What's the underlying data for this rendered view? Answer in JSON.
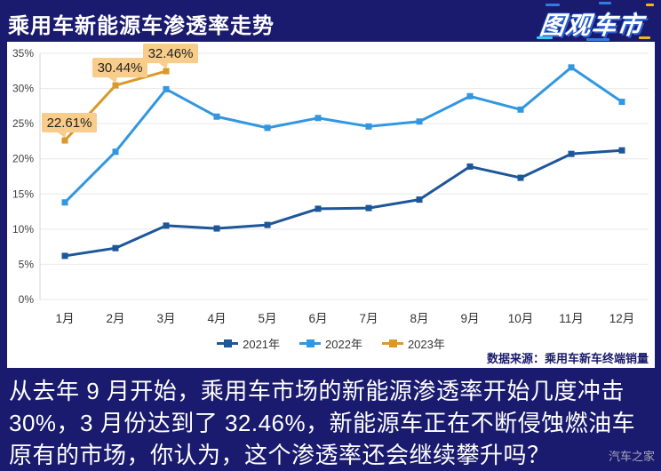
{
  "header": {
    "title": "乘用车新能源车渗透率走势",
    "logo": "图观车市"
  },
  "chart_data": {
    "type": "line",
    "title": "乘用车新能源车渗透率走势",
    "categories": [
      "1月",
      "2月",
      "3月",
      "4月",
      "5月",
      "6月",
      "7月",
      "8月",
      "9月",
      "10月",
      "11月",
      "12月"
    ],
    "ylim": [
      0,
      35
    ],
    "yticks": [
      0,
      5,
      10,
      15,
      20,
      25,
      30,
      35
    ],
    "ytick_suffix": "%",
    "grid": true,
    "legend_position": "bottom",
    "series": [
      {
        "name": "2021年",
        "color": "#1d5699",
        "values": [
          6.2,
          7.3,
          10.5,
          10.1,
          10.6,
          12.9,
          13.0,
          14.2,
          18.9,
          17.3,
          20.7,
          21.2
        ]
      },
      {
        "name": "2022年",
        "color": "#3197e0",
        "values": [
          13.8,
          21.0,
          29.9,
          26.0,
          24.4,
          25.8,
          24.6,
          25.3,
          28.9,
          27.0,
          33.0,
          28.1
        ]
      },
      {
        "name": "2023年",
        "color": "#d9992b",
        "values": [
          22.61,
          30.44,
          32.46
        ],
        "point_labels": [
          "22.61%",
          "30.44%",
          "32.46%"
        ]
      }
    ]
  },
  "source": "数据来源：乘用车新车终端销量",
  "caption": "从去年 9 月开始，乘用车市场的新能源渗透率开始几度冲击 30%，3 月份达到了 32.46%，新能源车正在不断侵蚀燃油车原有的市场，你认为，这个渗透率还会继续攀升吗？",
  "watermark": "汽车之家",
  "colors": {
    "background": "#1a1a6e",
    "panel": "#ffffff",
    "grid": "#e8e8e8",
    "axis_line": "#d5d5d5",
    "axis_text": "#404040",
    "label_bg": "#f8cc8a",
    "label_text": "#222222",
    "source_text": "#1a1a6e"
  }
}
